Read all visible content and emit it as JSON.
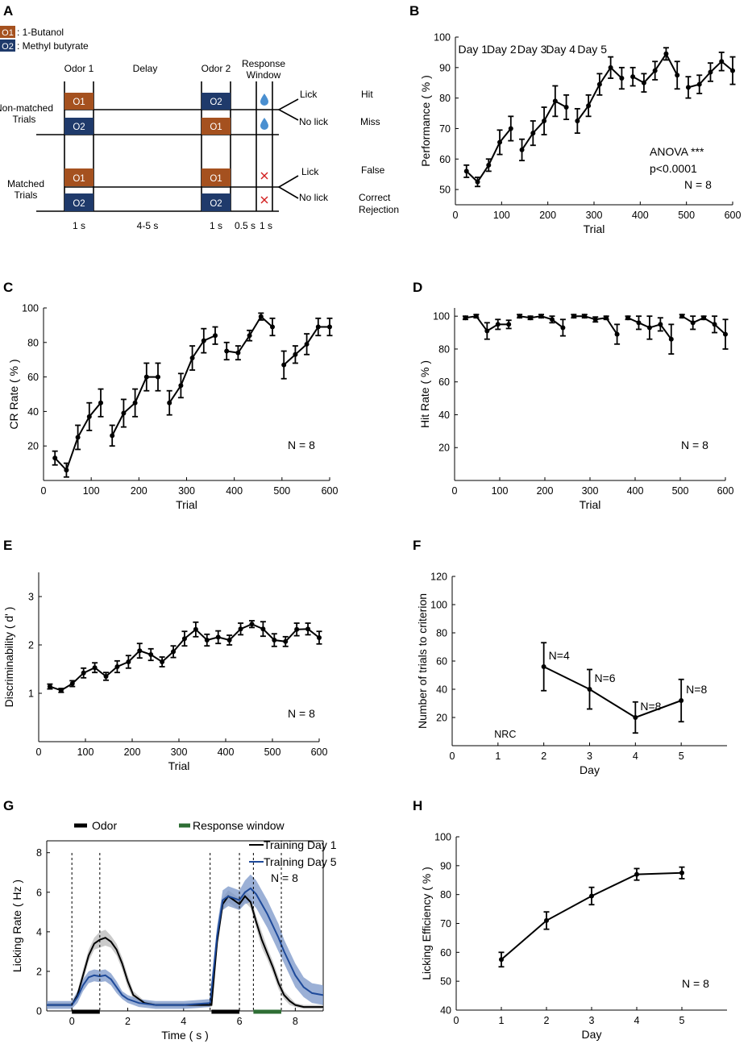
{
  "colors": {
    "odor1": "#a5511f",
    "odor2": "#1f3a6b",
    "blue_trace": "#1e4a9a",
    "blue_band": "#7a96c8",
    "black_band": "#b8b8b8",
    "response_green": "#2e6e34",
    "drop": "#4a8fd0",
    "cross": "#d21f1f"
  },
  "icons": {
    "water_drop": "water-drop-icon",
    "cross": "cross-icon"
  },
  "panel_letters": [
    "A",
    "B",
    "C",
    "D",
    "E",
    "F",
    "G",
    "H"
  ],
  "schematic": {
    "legend": [
      {
        "tag": "O1",
        "name": ": 1-Butanol"
      },
      {
        "tag": "O2",
        "name": ": Methyl butyrate"
      }
    ],
    "headers": {
      "odor1": "Odor 1",
      "delay": "Delay",
      "odor2": "Odor 2",
      "response_line1": "Response",
      "response_line2": "Window"
    },
    "non_matched": {
      "label_line1": "Non-matched",
      "label_line2": "Trials",
      "top": [
        "O1",
        "O2"
      ],
      "bottom": [
        "O2",
        "O1"
      ]
    },
    "matched": {
      "label_line1": "Matched",
      "label_line2": "Trials",
      "top": [
        "O1",
        "O1"
      ],
      "bottom": [
        "O2",
        "O2"
      ]
    },
    "outcomes": {
      "lick": "Lick",
      "no_lick": "No lick",
      "hit": "Hit",
      "miss": "Miss",
      "false": "False",
      "correct": "Correct",
      "rejection": "Rejection"
    },
    "timing": [
      "1 s",
      "4-5 s",
      "1 s",
      "0.5 s",
      "1 s"
    ]
  },
  "chart_data": [
    {
      "id": "B",
      "type": "line",
      "xlabel": "Trial",
      "ylabel": "Performance ( % )",
      "xlim": [
        0,
        600
      ],
      "ylim": [
        45,
        100
      ],
      "xticks": [
        0,
        100,
        200,
        300,
        400,
        500,
        600
      ],
      "yticks": [
        50,
        60,
        70,
        80,
        90,
        100
      ],
      "day_labels": [
        "Day 1",
        "Day 2",
        "Day 3",
        "Day 4",
        "Day 5"
      ],
      "annotations": [
        "ANOVA ***",
        "p<0.0001",
        "N = 8"
      ],
      "segments": [
        {
          "x": [
            24,
            48,
            72,
            96,
            120
          ],
          "y": [
            56,
            52.5,
            58,
            65.5,
            70
          ],
          "err": [
            2,
            1.5,
            2,
            4,
            4
          ]
        },
        {
          "x": [
            144,
            168,
            192,
            216,
            240
          ],
          "y": [
            63,
            68.5,
            72.5,
            79,
            77
          ],
          "err": [
            3.5,
            4,
            4.5,
            5,
            4
          ]
        },
        {
          "x": [
            264,
            288,
            312,
            336,
            360
          ],
          "y": [
            72.5,
            77.5,
            84.5,
            90,
            86.5
          ],
          "err": [
            4,
            3.5,
            3.5,
            3.5,
            3.5
          ]
        },
        {
          "x": [
            384,
            408,
            432,
            456,
            480
          ],
          "y": [
            87,
            85,
            89,
            94.5,
            87.5
          ],
          "err": [
            3,
            3,
            3,
            2,
            4.5
          ]
        },
        {
          "x": [
            504,
            528,
            552,
            576,
            600
          ],
          "y": [
            83.5,
            84.5,
            88.5,
            92,
            89
          ],
          "err": [
            3.5,
            3,
            3,
            3,
            4.5
          ]
        }
      ]
    },
    {
      "id": "C",
      "type": "line",
      "xlabel": "Trial",
      "ylabel": "CR Rate ( % )",
      "xlim": [
        0,
        600
      ],
      "ylim": [
        0,
        100
      ],
      "xticks": [
        0,
        100,
        200,
        300,
        400,
        500,
        600
      ],
      "yticks": [
        20,
        40,
        60,
        80,
        100
      ],
      "annotations": [
        "N = 8"
      ],
      "segments": [
        {
          "x": [
            24,
            48,
            72,
            96,
            120
          ],
          "y": [
            13,
            6,
            25,
            37,
            45
          ],
          "err": [
            4,
            4,
            7,
            8,
            8
          ]
        },
        {
          "x": [
            144,
            168,
            192,
            216,
            240
          ],
          "y": [
            26,
            39,
            45,
            60,
            60
          ],
          "err": [
            6,
            8,
            8,
            8,
            8
          ]
        },
        {
          "x": [
            264,
            288,
            312,
            336,
            360
          ],
          "y": [
            45,
            55,
            71,
            81,
            84
          ],
          "err": [
            7,
            7,
            7,
            7,
            5
          ]
        },
        {
          "x": [
            384,
            408,
            432,
            456,
            480
          ],
          "y": [
            75,
            74,
            84,
            95,
            89
          ],
          "err": [
            5,
            4,
            3,
            2,
            5
          ]
        },
        {
          "x": [
            504,
            528,
            552,
            576,
            600
          ],
          "y": [
            67,
            73,
            79,
            89,
            89
          ],
          "err": [
            8,
            5,
            6,
            5,
            5
          ]
        }
      ]
    },
    {
      "id": "D",
      "type": "line",
      "xlabel": "Trial",
      "ylabel": "Hit Rate ( % )",
      "xlim": [
        0,
        600
      ],
      "ylim": [
        0,
        105
      ],
      "xticks": [
        0,
        100,
        200,
        300,
        400,
        500,
        600
      ],
      "yticks": [
        20,
        40,
        60,
        80,
        100
      ],
      "annotations": [
        "N = 8"
      ],
      "segments": [
        {
          "x": [
            24,
            48,
            72,
            96,
            120
          ],
          "y": [
            99,
            100,
            91,
            95,
            95
          ],
          "err": [
            1,
            1,
            5,
            3,
            2.5
          ]
        },
        {
          "x": [
            144,
            168,
            192,
            216,
            240
          ],
          "y": [
            100,
            99,
            100,
            98,
            93
          ],
          "err": [
            1,
            1,
            1,
            2,
            5
          ]
        },
        {
          "x": [
            264,
            288,
            312,
            336,
            360
          ],
          "y": [
            100,
            100,
            98,
            99,
            89
          ],
          "err": [
            1,
            1,
            1.5,
            1,
            6
          ]
        },
        {
          "x": [
            384,
            408,
            432,
            456,
            480
          ],
          "y": [
            99,
            96,
            93,
            95,
            86
          ],
          "err": [
            1,
            4,
            7,
            4,
            9
          ]
        },
        {
          "x": [
            504,
            528,
            552,
            576,
            600
          ],
          "y": [
            100,
            96,
            99,
            95,
            89
          ],
          "err": [
            1,
            4,
            1,
            5,
            9
          ]
        }
      ]
    },
    {
      "id": "E",
      "type": "line",
      "xlabel": "Trial",
      "ylabel": "Discriminability ( d' )",
      "xlim": [
        0,
        600
      ],
      "ylim": [
        0,
        3.5
      ],
      "xticks": [
        0,
        100,
        200,
        300,
        400,
        500,
        600
      ],
      "yticks": [
        1,
        2,
        3
      ],
      "annotations": [
        "N = 8"
      ],
      "segments": [
        {
          "x": [
            24,
            48,
            72,
            96,
            120,
            144,
            168,
            192,
            216,
            240,
            264,
            288,
            312,
            336,
            360,
            384,
            408,
            432,
            456,
            480,
            504,
            528,
            552,
            576,
            600
          ],
          "y": [
            1.14,
            1.06,
            1.2,
            1.42,
            1.53,
            1.35,
            1.55,
            1.65,
            1.88,
            1.8,
            1.65,
            1.86,
            2.13,
            2.32,
            2.1,
            2.16,
            2.1,
            2.33,
            2.43,
            2.33,
            2.1,
            2.07,
            2.32,
            2.33,
            2.15
          ],
          "err": [
            0.05,
            0.04,
            0.06,
            0.1,
            0.1,
            0.08,
            0.12,
            0.13,
            0.15,
            0.12,
            0.1,
            0.12,
            0.15,
            0.15,
            0.12,
            0.13,
            0.1,
            0.12,
            0.07,
            0.15,
            0.13,
            0.1,
            0.13,
            0.12,
            0.13
          ]
        }
      ]
    },
    {
      "id": "F",
      "type": "line",
      "xlabel": "Day",
      "ylabel": "Number of trials to criterion",
      "xlim": [
        0,
        6
      ],
      "ylim": [
        0,
        120
      ],
      "xticks": [
        0,
        1,
        2,
        3,
        4,
        5
      ],
      "yticks": [
        20,
        40,
        60,
        80,
        100,
        120
      ],
      "nrc_label": "NRC",
      "nrc_x": 1,
      "segments": [
        {
          "x": [
            2,
            3,
            4,
            5
          ],
          "y": [
            56,
            40,
            20,
            32
          ],
          "err": [
            17,
            14,
            11,
            15
          ]
        }
      ],
      "point_labels": [
        "N=4",
        "N=6",
        "N=8",
        "N=8"
      ]
    },
    {
      "id": "G",
      "type": "line",
      "xlabel": "Time ( s )",
      "ylabel": "Licking Rate ( Hz )",
      "xlim": [
        -0.9,
        9
      ],
      "ylim": [
        0,
        8.6
      ],
      "xticks": [
        0,
        2,
        4,
        6,
        8
      ],
      "yticks": [
        0,
        2,
        4,
        6,
        8
      ],
      "legend_odor": "Odor",
      "legend_response": "Response window",
      "annotations": [
        "N = 8"
      ],
      "odor_periods": [
        [
          0,
          1
        ],
        [
          5,
          6
        ]
      ],
      "response_window": [
        6.5,
        7.5
      ],
      "dashed_lines": [
        0,
        1,
        4.95,
        6,
        6.5,
        7.5
      ],
      "series": [
        {
          "name": "Training Day 1",
          "x": [
            -0.9,
            0,
            0.2,
            0.4,
            0.6,
            0.8,
            1.0,
            1.2,
            1.4,
            1.6,
            1.8,
            2.0,
            2.2,
            2.6,
            3,
            3.5,
            4,
            4.5,
            5,
            5.2,
            5.4,
            5.6,
            5.8,
            6.0,
            6.2,
            6.4,
            6.6,
            6.8,
            7.0,
            7.2,
            7.4,
            7.6,
            7.8,
            8.0,
            8.3,
            8.6,
            9.0
          ],
          "y": [
            0.3,
            0.3,
            0.8,
            1.8,
            2.8,
            3.4,
            3.6,
            3.7,
            3.5,
            3.1,
            2.4,
            1.5,
            0.8,
            0.4,
            0.3,
            0.3,
            0.3,
            0.3,
            0.3,
            3.5,
            5.4,
            5.8,
            5.6,
            5.4,
            5.8,
            5.5,
            4.5,
            3.6,
            2.9,
            2.2,
            1.4,
            0.8,
            0.5,
            0.3,
            0.2,
            0.2,
            0.2
          ],
          "err": [
            0.1,
            0.1,
            0.2,
            0.3,
            0.3,
            0.3,
            0.4,
            0.4,
            0.3,
            0.3,
            0.3,
            0.3,
            0.2,
            0.1,
            0.1,
            0.1,
            0.1,
            0.1,
            0.1,
            0.4,
            0.3,
            0.3,
            0.3,
            0.3,
            0.3,
            0.3,
            0.3,
            0.4,
            0.3,
            0.3,
            0.3,
            0.2,
            0.2,
            0.1,
            0.1,
            0.1,
            0.1
          ]
        },
        {
          "name": "Training Day 5",
          "x": [
            -0.9,
            0,
            0.2,
            0.4,
            0.6,
            0.8,
            1.0,
            1.2,
            1.4,
            1.6,
            1.8,
            2.0,
            2.4,
            3,
            3.5,
            4,
            4.5,
            4.95,
            5.2,
            5.4,
            5.6,
            5.8,
            6.0,
            6.2,
            6.4,
            6.6,
            6.8,
            7.0,
            7.2,
            7.4,
            7.6,
            7.8,
            8.0,
            8.3,
            8.6,
            9.0
          ],
          "y": [
            0.3,
            0.3,
            0.7,
            1.3,
            1.7,
            1.8,
            1.75,
            1.8,
            1.6,
            1.2,
            0.8,
            0.6,
            0.4,
            0.3,
            0.3,
            0.3,
            0.35,
            0.4,
            3.8,
            5.6,
            5.8,
            5.7,
            5.6,
            6.0,
            6.2,
            5.9,
            5.4,
            4.9,
            4.3,
            3.7,
            3.0,
            2.4,
            1.8,
            1.2,
            0.9,
            0.8
          ],
          "err": [
            0.2,
            0.2,
            0.3,
            0.3,
            0.3,
            0.3,
            0.3,
            0.3,
            0.3,
            0.3,
            0.2,
            0.2,
            0.2,
            0.2,
            0.2,
            0.2,
            0.2,
            0.2,
            0.5,
            0.5,
            0.5,
            0.5,
            0.5,
            0.6,
            0.7,
            0.7,
            0.7,
            0.7,
            0.7,
            0.7,
            0.6,
            0.6,
            0.6,
            0.5,
            0.5,
            0.5
          ]
        }
      ]
    },
    {
      "id": "H",
      "type": "line",
      "xlabel": "Day",
      "ylabel": "Licking Efficiency ( % )",
      "xlim": [
        0,
        6
      ],
      "ylim": [
        40,
        100
      ],
      "xticks": [
        0,
        1,
        2,
        3,
        4,
        5
      ],
      "yticks": [
        40,
        50,
        60,
        70,
        80,
        90,
        100
      ],
      "annotations": [
        "N = 8"
      ],
      "segments": [
        {
          "x": [
            1,
            2,
            3,
            4,
            5
          ],
          "y": [
            57.5,
            71,
            79.5,
            87,
            87.5
          ],
          "err": [
            2.5,
            3,
            3,
            2,
            2
          ]
        }
      ]
    }
  ]
}
